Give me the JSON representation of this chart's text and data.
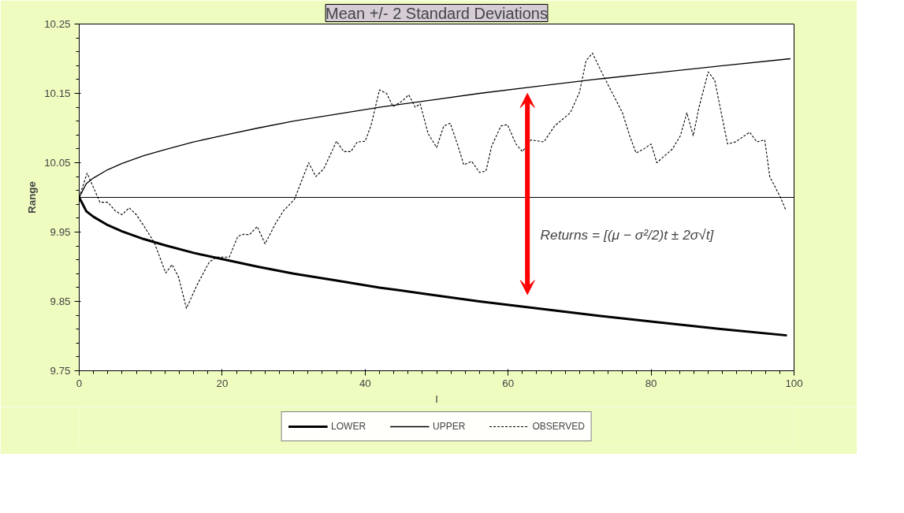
{
  "chart_data": {
    "type": "line",
    "title": "Mean +/- 2 Standard Deviations",
    "xlabel": "I",
    "ylabel": "Range",
    "annotations": [
      "Returns = [(μ − σ²/2)t ± 2σ√t]"
    ],
    "xlim": [
      0,
      100
    ],
    "xticks": [
      0,
      20,
      40,
      60,
      80,
      100
    ],
    "ylim": [
      9.75,
      10.25
    ],
    "yticks": [
      9.75,
      9.85,
      9.95,
      10.05,
      10.15,
      10.25
    ],
    "grid": false,
    "legend": "bottom",
    "marker": "none",
    "ref_lines": [
      {
        "axis": "y",
        "value": 10.0,
        "label": null,
        "color": "#000000"
      }
    ],
    "series": [
      {
        "name": "LOWER",
        "color": "#000000",
        "line_style": "solid",
        "x": [
          0,
          1,
          2,
          4,
          6,
          9,
          12,
          16,
          20,
          25,
          30,
          36,
          42,
          49,
          56,
          64,
          72,
          81,
          90,
          99
        ],
        "values": [
          10.0,
          9.98,
          9.972,
          9.96,
          9.951,
          9.94,
          9.931,
          9.92,
          9.911,
          9.9,
          9.89,
          9.88,
          9.87,
          9.86,
          9.85,
          9.84,
          9.83,
          9.82,
          9.81,
          9.801
        ]
      },
      {
        "name": "UPPER",
        "color": "#000000",
        "line_style": "solid",
        "x": [
          0,
          1,
          2,
          4,
          6,
          9,
          12,
          16,
          20,
          25,
          30,
          36,
          42,
          49,
          56,
          64,
          72,
          81,
          90,
          99.5
        ],
        "values": [
          10.0,
          10.02,
          10.028,
          10.04,
          10.049,
          10.06,
          10.069,
          10.08,
          10.089,
          10.1,
          10.11,
          10.12,
          10.13,
          10.14,
          10.15,
          10.16,
          10.17,
          10.18,
          10.19,
          10.2
        ]
      },
      {
        "name": "OBSERVED",
        "color": "#000000",
        "line_style": "dashed",
        "x": [
          0,
          1.1,
          2.9,
          4,
          5.1,
          6,
          7,
          8,
          9.1,
          10.5,
          12.1,
          13,
          13.9,
          15,
          16.5,
          18.2,
          19.3,
          21,
          22.2,
          23.1,
          23.8,
          24.9,
          26,
          27.5,
          28.6,
          30.1,
          32.1,
          33.1,
          34.2,
          36,
          37,
          38,
          38.9,
          40,
          40.8,
          41.5,
          42,
          43,
          43.9,
          45.2,
          46.1,
          47,
          47.7,
          48.8,
          50,
          51,
          51.9,
          52.9,
          53.8,
          54.9,
          56,
          56.9,
          57.7,
          59,
          59.9,
          61.1,
          62,
          63.2,
          65,
          66.5,
          68.7,
          70,
          70.9,
          71.8,
          73.4,
          76,
          77,
          77.9,
          79,
          80,
          80.8,
          83,
          84.1,
          85,
          85.9,
          86.7,
          88,
          88.9,
          89.6,
          90.7,
          91.8,
          93.8,
          94.8,
          95.9,
          96.6,
          98.1,
          98.8
        ],
        "values": [
          10.0,
          10.035,
          9.993,
          9.993,
          9.98,
          9.975,
          9.985,
          9.975,
          9.958,
          9.935,
          9.891,
          9.903,
          9.885,
          9.84,
          9.874,
          9.907,
          9.914,
          9.914,
          9.944,
          9.947,
          9.946,
          9.958,
          9.933,
          9.963,
          9.981,
          9.997,
          10.05,
          10.03,
          10.041,
          10.081,
          10.066,
          10.066,
          10.08,
          10.081,
          10.103,
          10.133,
          10.155,
          10.15,
          10.131,
          10.139,
          10.148,
          10.13,
          10.135,
          10.092,
          10.072,
          10.103,
          10.107,
          10.077,
          10.047,
          10.052,
          10.036,
          10.038,
          10.074,
          10.103,
          10.105,
          10.077,
          10.066,
          10.083,
          10.08,
          10.103,
          10.122,
          10.152,
          10.197,
          10.208,
          10.174,
          10.122,
          10.089,
          10.064,
          10.07,
          10.077,
          10.05,
          10.07,
          10.089,
          10.122,
          10.089,
          10.13,
          10.181,
          10.169,
          10.133,
          10.077,
          10.08,
          10.094,
          10.08,
          10.083,
          10.03,
          10.0,
          9.983
        ]
      }
    ]
  }
}
